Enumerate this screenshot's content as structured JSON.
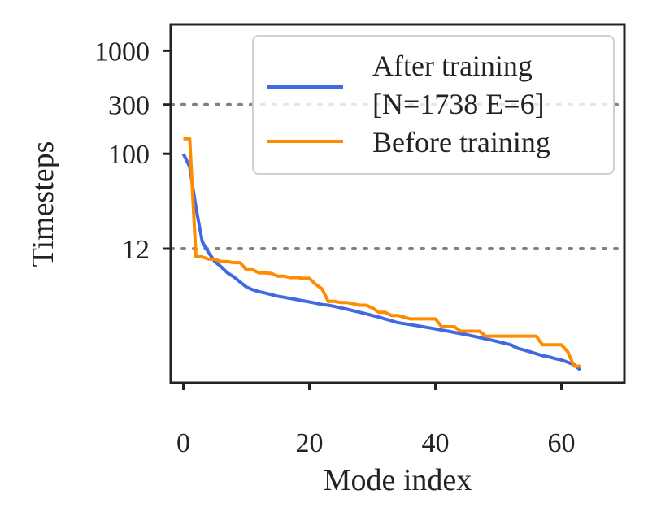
{
  "chart_data": {
    "type": "line",
    "xlabel": "Mode index",
    "ylabel": "Timesteps",
    "xlim": [
      -2,
      70
    ],
    "ylim": [
      0.6,
      1800
    ],
    "y_scale": "log",
    "x_ticks": [
      0,
      20,
      40,
      60
    ],
    "x_tick_labels": [
      "0",
      "20",
      "40",
      "60"
    ],
    "y_ticks": [
      1000,
      300,
      100,
      12
    ],
    "y_tick_labels": [
      "1000",
      "300",
      "100",
      "12"
    ],
    "reference_lines": [
      300,
      12
    ],
    "grid": false,
    "legend": {
      "position": "top-right",
      "entries": [
        "After training",
        "[N=1738 E=6]",
        "Before training"
      ]
    },
    "series": [
      {
        "name": "After training [N=1738 E=6]",
        "color": "#4169e1",
        "x": [
          0,
          1,
          2,
          3,
          4,
          5,
          6,
          7,
          8,
          9,
          10,
          11,
          12,
          13,
          14,
          15,
          16,
          17,
          18,
          19,
          20,
          21,
          22,
          23,
          24,
          25,
          26,
          27,
          28,
          29,
          30,
          31,
          32,
          33,
          34,
          35,
          36,
          37,
          38,
          39,
          40,
          41,
          42,
          43,
          44,
          45,
          46,
          47,
          48,
          49,
          50,
          51,
          52,
          53,
          54,
          55,
          56,
          57,
          58,
          59,
          60,
          61,
          62,
          63
        ],
        "y": [
          100,
          75,
          30,
          14,
          11,
          9,
          8,
          7,
          6.4,
          5.7,
          5.1,
          4.8,
          4.6,
          4.45,
          4.3,
          4.15,
          4.05,
          3.95,
          3.85,
          3.75,
          3.65,
          3.55,
          3.45,
          3.4,
          3.3,
          3.2,
          3.1,
          3,
          2.9,
          2.8,
          2.7,
          2.6,
          2.5,
          2.4,
          2.3,
          2.25,
          2.2,
          2.15,
          2.1,
          2.05,
          2,
          1.95,
          1.9,
          1.85,
          1.8,
          1.75,
          1.7,
          1.65,
          1.6,
          1.55,
          1.5,
          1.45,
          1.4,
          1.3,
          1.25,
          1.2,
          1.15,
          1.1,
          1.07,
          1.03,
          1,
          0.95,
          0.9,
          0.8
        ]
      },
      {
        "name": "Before training",
        "color": "#ff8c00",
        "x": [
          0,
          1,
          2,
          3,
          4,
          5,
          6,
          7,
          8,
          9,
          10,
          11,
          12,
          13,
          14,
          15,
          16,
          17,
          18,
          19,
          20,
          21,
          22,
          23,
          24,
          25,
          26,
          27,
          28,
          29,
          30,
          31,
          32,
          33,
          34,
          35,
          36,
          37,
          38,
          39,
          40,
          41,
          42,
          43,
          44,
          45,
          46,
          47,
          48,
          49,
          50,
          51,
          52,
          53,
          54,
          55,
          56,
          57,
          58,
          59,
          60,
          61,
          62,
          63
        ],
        "y": [
          140,
          140,
          10,
          10,
          9.5,
          9.5,
          9,
          9,
          8.8,
          8.8,
          7.5,
          7.5,
          7,
          7,
          6.9,
          6.5,
          6.5,
          6.3,
          6.3,
          6.2,
          6.2,
          5.4,
          4.9,
          3.7,
          3.7,
          3.6,
          3.6,
          3.5,
          3.4,
          3.4,
          3.2,
          2.9,
          2.9,
          2.7,
          2.7,
          2.6,
          2.5,
          2.5,
          2.5,
          2.5,
          2.5,
          2.1,
          2.1,
          2.1,
          1.9,
          1.9,
          1.9,
          1.9,
          1.7,
          1.7,
          1.7,
          1.7,
          1.7,
          1.7,
          1.7,
          1.7,
          1.7,
          1.4,
          1.4,
          1.4,
          1.4,
          1.2,
          0.87,
          0.87
        ]
      }
    ]
  }
}
